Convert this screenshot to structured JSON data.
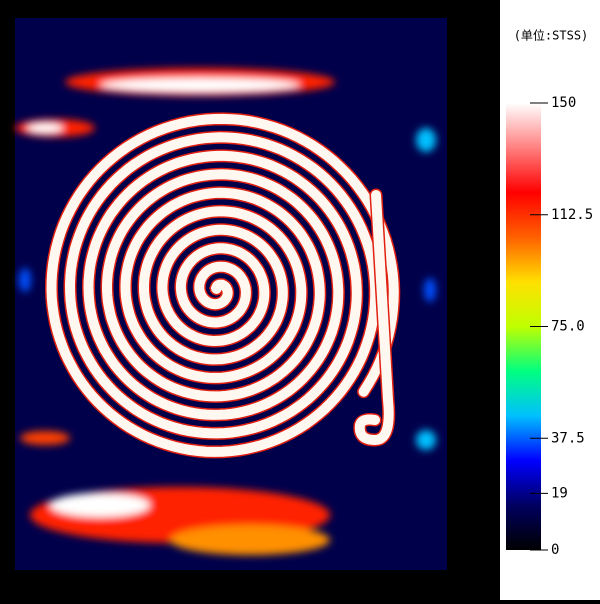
{
  "chart_data": {
    "type": "heatmap",
    "colorbar": {
      "title": "(单位:STSS)",
      "lim": [
        0,
        150
      ],
      "ticks": [
        150,
        112.5,
        {
          "value": 75,
          "label": "75.0"
        },
        37.5,
        {
          "value": 19,
          "label": "19",
          "color": "#1a1acc"
        },
        0
      ],
      "colors": [
        "#000000",
        "#000060",
        "#0000ff",
        "#00c0ff",
        "#00ff80",
        "#c0ff00",
        "#ffe000",
        "#ff6000",
        "#ff0000",
        "#ff8080",
        "#ffffff"
      ]
    }
  }
}
